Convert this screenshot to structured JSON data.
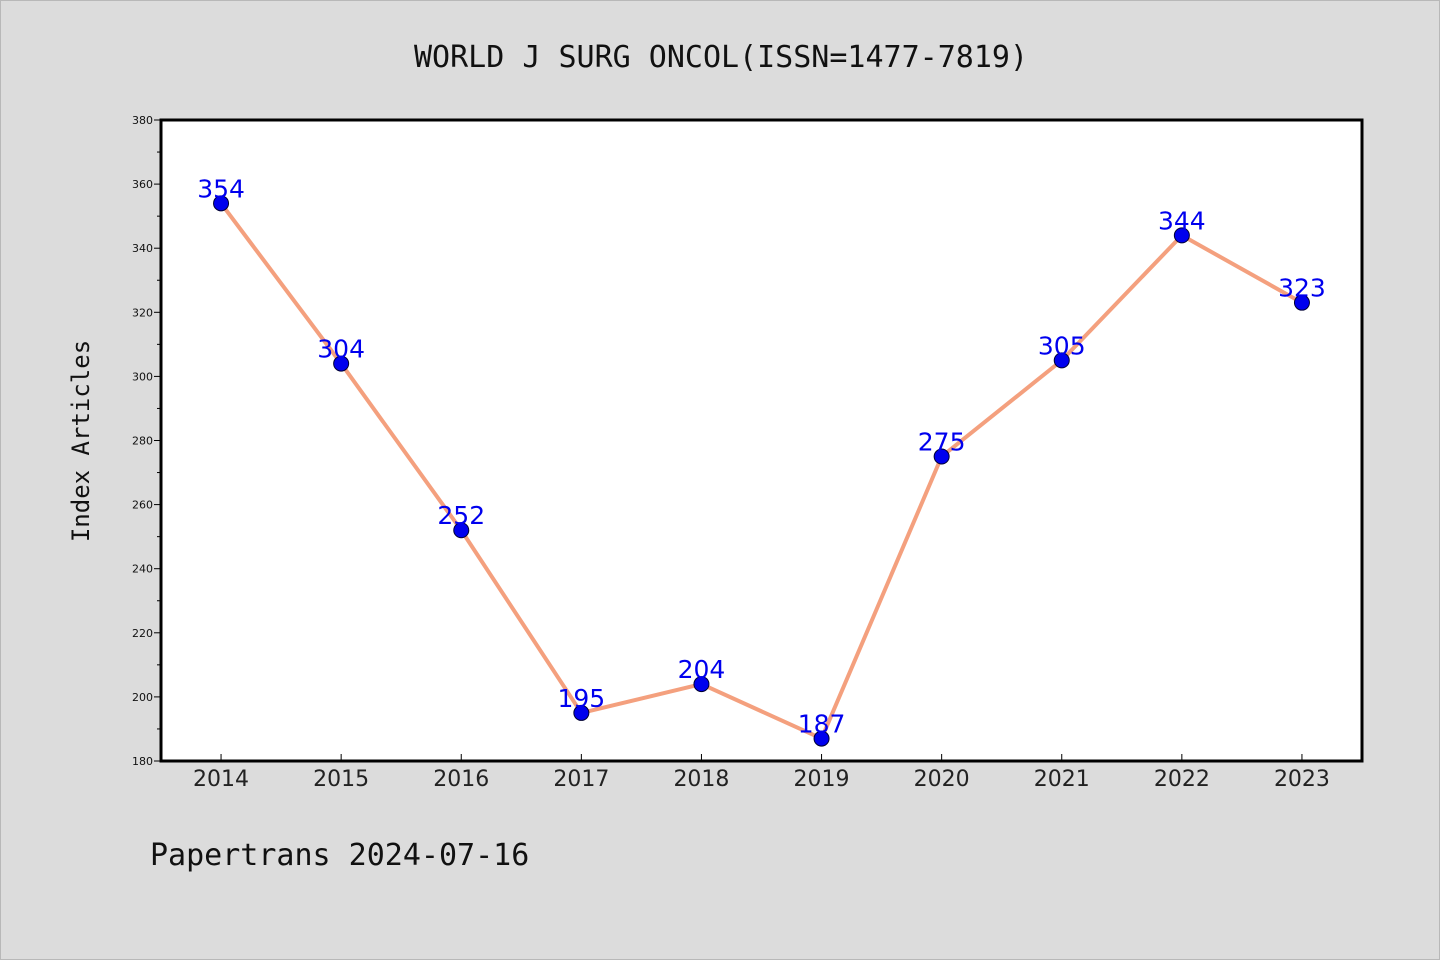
{
  "chart_data": {
    "type": "line",
    "title": "WORLD J SURG ONCOL(ISSN=1477-7819)",
    "ylabel": "Index Articles",
    "xlabel": "",
    "categories": [
      "2014",
      "2015",
      "2016",
      "2017",
      "2018",
      "2019",
      "2020",
      "2021",
      "2022",
      "2023"
    ],
    "series": [
      {
        "values": [
          354,
          304,
          252,
          195,
          204,
          187,
          275,
          305,
          344,
          323
        ]
      }
    ],
    "ylim": [
      180,
      380
    ],
    "yticks": [
      "180",
      "200",
      "220",
      "240",
      "260",
      "280",
      "300",
      "320",
      "340",
      "360",
      "380"
    ],
    "grid": false,
    "legend": "none",
    "colors": {
      "line": "#f4a07e",
      "marker": "#0000ee",
      "label": "#0000ee",
      "background": "#dcdcdc",
      "plot_background": "#ffffff"
    }
  },
  "footer": {
    "text": "Papertrans 2024-07-16"
  }
}
